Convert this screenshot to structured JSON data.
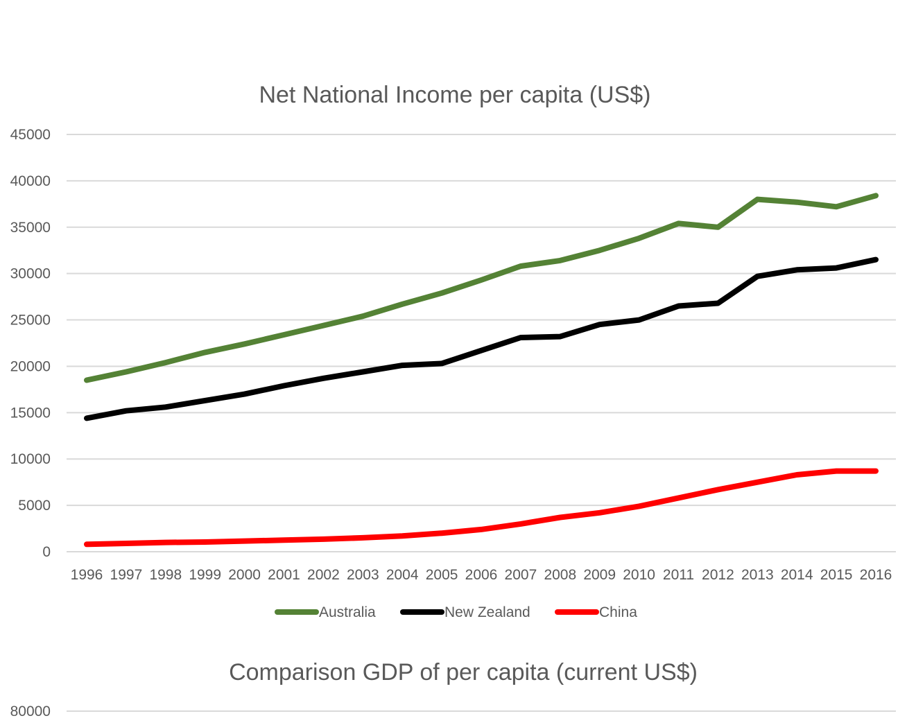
{
  "chart_data": [
    {
      "type": "line",
      "title": "Net National Income per capita (US$)",
      "xlabel": "",
      "ylabel": "",
      "ylim": [
        0,
        45000
      ],
      "yticks": [
        "45000",
        "40000",
        "35000",
        "30000",
        "25000",
        "20000",
        "15000",
        "10000",
        "5000",
        "0"
      ],
      "x": [
        "1996",
        "1997",
        "1998",
        "1999",
        "2000",
        "2001",
        "2002",
        "2003",
        "2004",
        "2005",
        "2006",
        "2007",
        "2008",
        "2009",
        "2010",
        "2011",
        "2012",
        "2013",
        "2014",
        "2015",
        "2016"
      ],
      "grid": true,
      "legend": "bottom",
      "series": [
        {
          "name": "Australia",
          "color": "#548235",
          "values": [
            18500,
            19400,
            20400,
            21500,
            22400,
            23400,
            24400,
            25400,
            26700,
            27900,
            29300,
            30800,
            31400,
            32500,
            33800,
            35400,
            35000,
            38000,
            37700,
            37200,
            38400
          ]
        },
        {
          "name": "New Zealand",
          "color": "#000000",
          "values": [
            14400,
            15200,
            15600,
            16300,
            17000,
            17900,
            18700,
            19400,
            20100,
            20300,
            21700,
            23100,
            23200,
            24500,
            25000,
            26500,
            26800,
            29700,
            30400,
            30600,
            31500
          ]
        },
        {
          "name": "China",
          "color": "#ff0000",
          "values": [
            800,
            900,
            1000,
            1050,
            1150,
            1250,
            1350,
            1500,
            1700,
            2000,
            2400,
            3000,
            3700,
            4200,
            4900,
            5800,
            6700,
            7500,
            8300,
            8700,
            8700
          ]
        }
      ]
    },
    {
      "type": "line",
      "title": "Comparison GDP of per capita (current US$)",
      "xlabel": "",
      "ylabel": "",
      "yticks": [
        "80000"
      ],
      "grid": true
    }
  ]
}
